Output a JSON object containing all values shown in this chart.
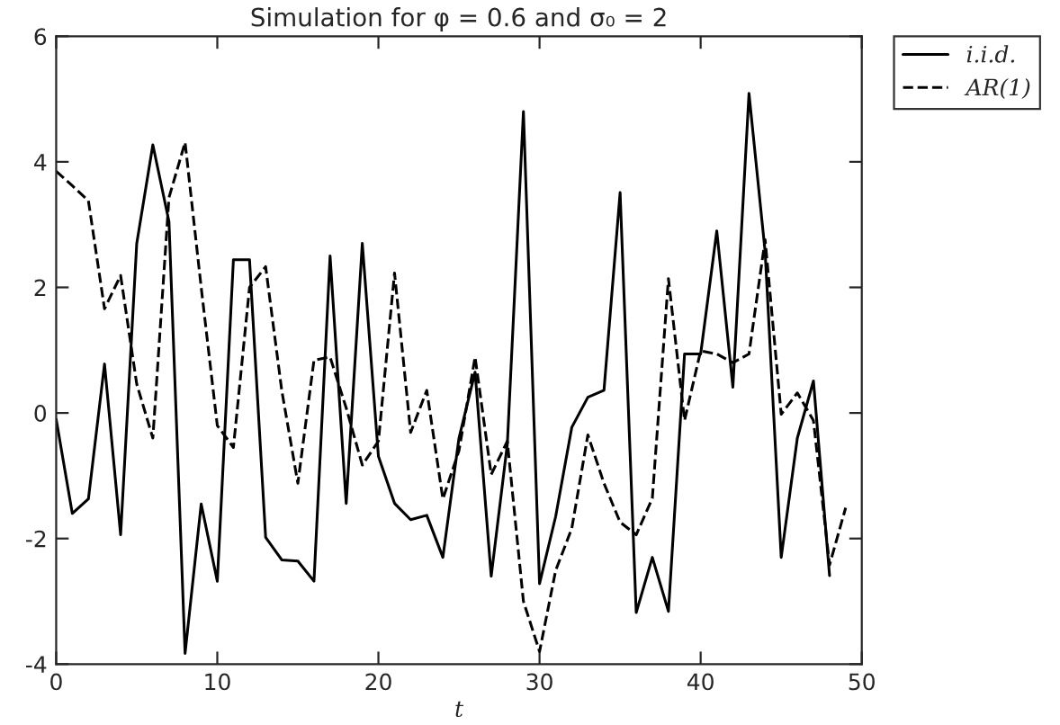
{
  "chart_data": {
    "type": "line",
    "title": "Simulation for φ = 0.6 and σ₀ = 2",
    "xlabel": "t",
    "x": [
      0,
      1,
      2,
      3,
      4,
      5,
      6,
      7,
      8,
      9,
      10,
      11,
      12,
      13,
      14,
      15,
      16,
      17,
      18,
      19,
      20,
      21,
      22,
      23,
      24,
      25,
      26,
      27,
      28,
      29,
      30,
      31,
      32,
      33,
      34,
      35,
      36,
      37,
      38,
      39,
      40,
      41,
      42,
      43,
      44,
      45,
      46,
      47,
      48,
      49
    ],
    "series": [
      {
        "name": "i.i.d.",
        "color": "#000000",
        "line_style": "solid",
        "values": [
          -0.1,
          -1.6,
          -1.37,
          0.78,
          -1.94,
          2.7,
          4.27,
          3.05,
          -3.83,
          -1.45,
          -2.68,
          2.44,
          2.44,
          -1.98,
          -2.34,
          -2.36,
          -2.68,
          2.5,
          -1.44,
          2.7,
          -0.69,
          -1.44,
          -1.7,
          -1.63,
          -2.3,
          -0.4,
          0.65,
          -2.6,
          -0.5,
          4.8,
          -2.72,
          -1.65,
          -0.23,
          0.25,
          0.36,
          3.51,
          -3.18,
          -2.3,
          -3.16,
          0.94,
          0.94,
          2.9,
          0.41,
          5.09,
          2.57,
          -2.3,
          -0.4,
          0.51,
          -2.59,
          null
        ]
      },
      {
        "name": "AR(1)",
        "color": "#000000",
        "line_style": "dashed",
        "values": [
          3.85,
          3.62,
          3.38,
          1.66,
          2.19,
          0.46,
          -0.4,
          3.43,
          4.31,
          2.0,
          -0.2,
          -0.55,
          2.0,
          2.33,
          0.36,
          -1.12,
          0.84,
          0.89,
          0.08,
          -0.83,
          -0.45,
          2.23,
          -0.31,
          0.36,
          -1.37,
          -0.6,
          0.89,
          -0.98,
          -0.45,
          -3.0,
          -3.8,
          -2.51,
          -1.84,
          -0.35,
          -1.12,
          -1.74,
          -1.94,
          -1.36,
          2.14,
          -0.12,
          0.99,
          0.94,
          0.8,
          0.94,
          2.76,
          -0.02,
          0.32,
          -0.12,
          -2.42,
          -1.51
        ]
      }
    ],
    "xlim": [
      0,
      50
    ],
    "xticks": [
      0,
      10,
      20,
      30,
      40,
      50
    ],
    "ylim": [
      -4,
      6
    ],
    "yticks": [
      -4,
      -2,
      0,
      2,
      4,
      6
    ],
    "grid": false,
    "legend": "top right",
    "marker": "none"
  }
}
